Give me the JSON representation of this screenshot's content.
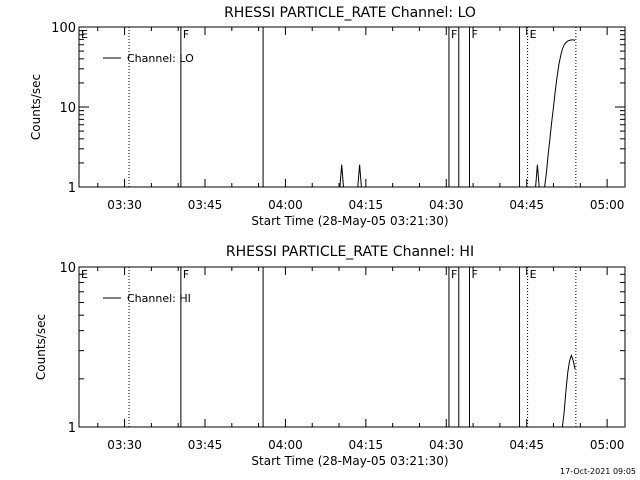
{
  "chart_data": [
    {
      "type": "line",
      "title": "RHESSI PARTICLE_RATE Channel: LO",
      "xlabel": "Start Time (28-May-05 03:21:30)",
      "ylabel": "Counts/sec",
      "yscale": "log",
      "xlim": [
        "03:21:30",
        "05:03:20"
      ],
      "ylim": [
        1,
        100
      ],
      "y_ticks": [
        1,
        10,
        100
      ],
      "x_ticks": [
        "03:30",
        "03:45",
        "04:00",
        "04:15",
        "04:30",
        "04:45",
        "05:00"
      ],
      "grid": false,
      "legend": {
        "position": "top-left",
        "entries": [
          "Channel: LO"
        ]
      },
      "markers": [
        {
          "time": "03:21:30",
          "label": "E",
          "style": "none"
        },
        {
          "time": "03:30:50",
          "label": "",
          "style": "dotted"
        },
        {
          "time": "03:40:30",
          "label": "F",
          "style": "solid"
        },
        {
          "time": "03:55:50",
          "label": "",
          "style": "solid"
        },
        {
          "time": "04:30:30",
          "label": "F",
          "style": "solid"
        },
        {
          "time": "04:32:20",
          "label": "",
          "style": "solid"
        },
        {
          "time": "04:34:20",
          "label": "F",
          "style": "solid"
        },
        {
          "time": "04:43:40",
          "label": "",
          "style": "solid"
        },
        {
          "time": "04:45:10",
          "label": "E",
          "style": "dotted"
        },
        {
          "time": "04:54:10",
          "label": "",
          "style": "dotted"
        }
      ],
      "segments": [
        {
          "name": "Channel: LO",
          "points": [
            [
              "04:10:10",
              1
            ],
            [
              "04:10:30",
              1.9
            ],
            [
              "04:10:50",
              1
            ]
          ]
        },
        {
          "name": "Channel: LO",
          "points": [
            [
              "04:13:30",
              1
            ],
            [
              "04:13:50",
              1.9
            ],
            [
              "04:14:10",
              1
            ]
          ]
        },
        {
          "name": "Channel: LO",
          "points": [
            [
              "04:46:40",
              1
            ],
            [
              "04:47:00",
              1.9
            ],
            [
              "04:47:20",
              1
            ]
          ]
        },
        {
          "name": "Channel: LO",
          "points": [
            [
              "04:48:20",
              1
            ],
            [
              "04:48:40",
              1.5
            ],
            [
              "04:49:00",
              2.5
            ],
            [
              "04:49:20",
              4
            ],
            [
              "04:49:40",
              6.5
            ],
            [
              "04:50:00",
              10
            ],
            [
              "04:50:20",
              16
            ],
            [
              "04:50:40",
              24
            ],
            [
              "04:51:00",
              34
            ],
            [
              "04:51:20",
              44
            ],
            [
              "04:51:40",
              53
            ],
            [
              "04:52:00",
              60
            ],
            [
              "04:52:20",
              64
            ],
            [
              "04:52:40",
              67
            ],
            [
              "04:53:00",
              68
            ],
            [
              "04:53:20",
              69
            ],
            [
              "04:53:40",
              69
            ],
            [
              "04:54:00",
              68
            ]
          ]
        }
      ]
    },
    {
      "type": "line",
      "title": "RHESSI PARTICLE_RATE Channel: HI",
      "xlabel": "Start Time (28-May-05 03:21:30)",
      "ylabel": "Counts/sec",
      "yscale": "log",
      "xlim": [
        "03:21:30",
        "05:03:20"
      ],
      "ylim": [
        1,
        10
      ],
      "y_ticks": [
        1,
        10
      ],
      "x_ticks": [
        "03:30",
        "03:45",
        "04:00",
        "04:15",
        "04:30",
        "04:45",
        "05:00"
      ],
      "grid": false,
      "legend": {
        "position": "top-left",
        "entries": [
          "Channel: HI"
        ]
      },
      "markers": [
        {
          "time": "03:21:30",
          "label": "E",
          "style": "none"
        },
        {
          "time": "03:30:50",
          "label": "",
          "style": "dotted"
        },
        {
          "time": "03:40:30",
          "label": "F",
          "style": "solid"
        },
        {
          "time": "03:55:50",
          "label": "",
          "style": "solid"
        },
        {
          "time": "04:30:30",
          "label": "F",
          "style": "solid"
        },
        {
          "time": "04:32:20",
          "label": "",
          "style": "solid"
        },
        {
          "time": "04:34:20",
          "label": "F",
          "style": "solid"
        },
        {
          "time": "04:43:40",
          "label": "",
          "style": "solid"
        },
        {
          "time": "04:45:10",
          "label": "E",
          "style": "dotted"
        },
        {
          "time": "04:54:10",
          "label": "",
          "style": "dotted"
        }
      ],
      "segments": [
        {
          "name": "Channel: HI",
          "points": [
            [
              "04:51:40",
              1
            ],
            [
              "04:52:00",
              1.25
            ],
            [
              "04:52:20",
              1.7
            ],
            [
              "04:52:40",
              2.2
            ],
            [
              "04:53:00",
              2.6
            ],
            [
              "04:53:20",
              2.8
            ],
            [
              "04:53:40",
              2.6
            ],
            [
              "04:54:00",
              2.3
            ]
          ]
        }
      ]
    }
  ],
  "footer": {
    "timestamp": "17-Oct-2021 09:05"
  }
}
